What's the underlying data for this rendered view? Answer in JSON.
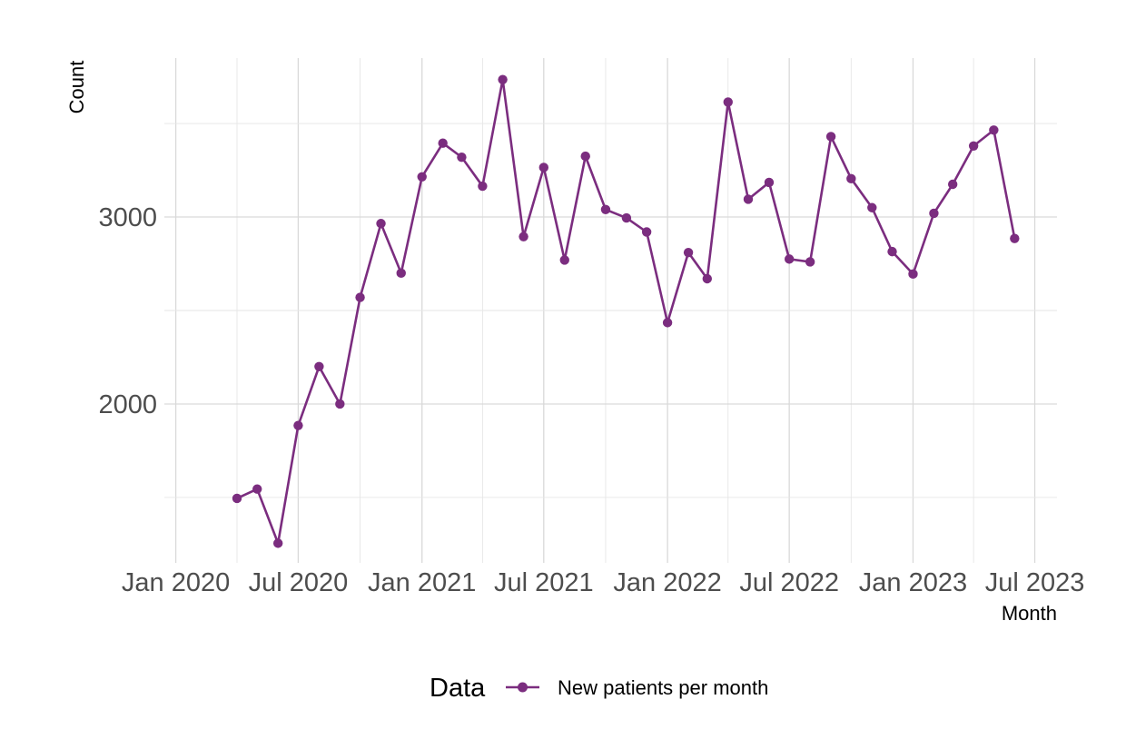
{
  "chart_data": {
    "type": "line",
    "xlabel": "Month",
    "ylabel": "Count",
    "x_tick_labels": [
      "Jan 2020",
      "Jul 2020",
      "Jan 2021",
      "Jul 2021",
      "Jan 2022",
      "Jul 2022",
      "Jan 2023",
      "Jul 2023"
    ],
    "y_tick_labels": [
      "2000",
      "3000"
    ],
    "ylim": [
      1150,
      3850
    ],
    "xlim": [
      "2019-12-15",
      "2023-08-03"
    ],
    "grid": true,
    "legend": {
      "title": "Data",
      "position": "bottom"
    },
    "series": [
      {
        "name": "New patients per month",
        "color": "#7b2d7f",
        "x": [
          "2020-04",
          "2020-05",
          "2020-06",
          "2020-07",
          "2020-08",
          "2020-09",
          "2020-10",
          "2020-11",
          "2020-12",
          "2021-01",
          "2021-02",
          "2021-03",
          "2021-04",
          "2021-05",
          "2021-06",
          "2021-07",
          "2021-08",
          "2021-09",
          "2021-10",
          "2021-11",
          "2021-12",
          "2022-01",
          "2022-02",
          "2022-03",
          "2022-04",
          "2022-05",
          "2022-06",
          "2022-07",
          "2022-08",
          "2022-09",
          "2022-10",
          "2022-11",
          "2022-12",
          "2023-01",
          "2023-02",
          "2023-03",
          "2023-04",
          "2023-05",
          "2023-06"
        ],
        "values": [
          1495,
          1545,
          1255,
          1885,
          2200,
          2000,
          2570,
          2965,
          2700,
          3215,
          3395,
          3320,
          3165,
          3735,
          2895,
          3265,
          2770,
          3325,
          3040,
          2995,
          2920,
          2435,
          2810,
          2670,
          3615,
          3095,
          3185,
          2775,
          2760,
          3430,
          3205,
          3050,
          2815,
          2695,
          3020,
          3175,
          3380,
          3465,
          2885
        ]
      }
    ]
  }
}
